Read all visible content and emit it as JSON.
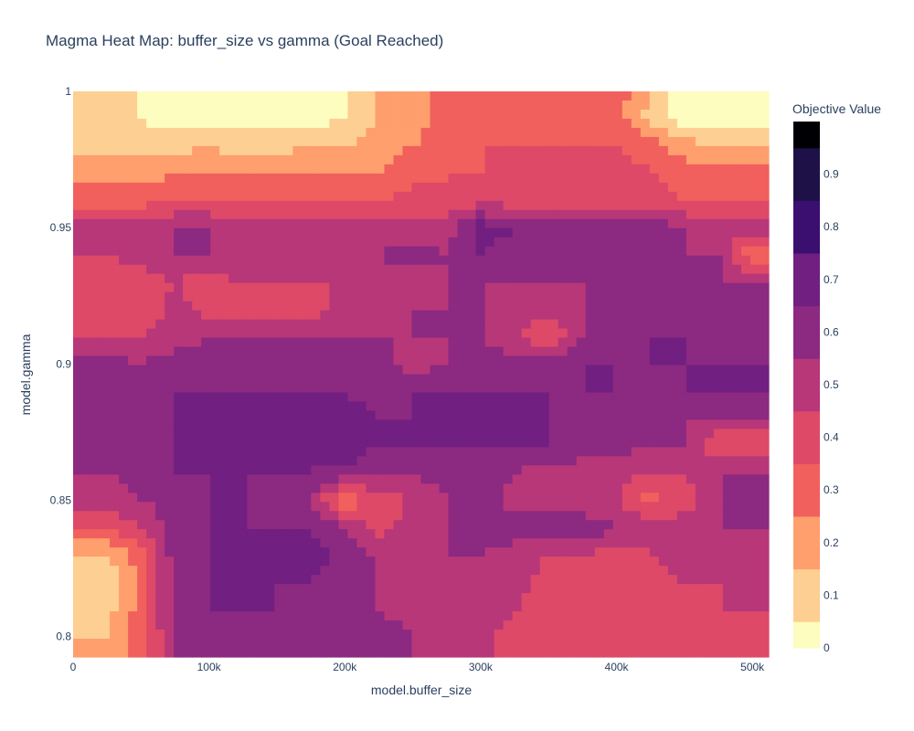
{
  "chart_data": {
    "type": "heatmap",
    "subtype": "contour",
    "title": "Magma Heat Map: buffer_size vs gamma (Goal Reached)",
    "xlabel": "model.buffer_size",
    "ylabel": "model.gamma",
    "xlim": [
      0,
      512000
    ],
    "ylim": [
      0.7925,
      1.0
    ],
    "x_ticks": [
      {
        "value": 0,
        "label": "0"
      },
      {
        "value": 100000,
        "label": "100k"
      },
      {
        "value": 200000,
        "label": "200k"
      },
      {
        "value": 300000,
        "label": "300k"
      },
      {
        "value": 400000,
        "label": "400k"
      },
      {
        "value": 500000,
        "label": "500k"
      }
    ],
    "y_ticks": [
      {
        "value": 0.8,
        "label": "0.8"
      },
      {
        "value": 0.85,
        "label": "0.85"
      },
      {
        "value": 0.9,
        "label": "0.9"
      },
      {
        "value": 0.95,
        "label": "0.95"
      },
      {
        "value": 1.0,
        "label": "1"
      }
    ],
    "colorbar": {
      "title": "Objective Value",
      "range": [
        0,
        1
      ],
      "ticks": [
        "0",
        "0.1",
        "0.2",
        "0.3",
        "0.4",
        "0.5",
        "0.6",
        "0.7",
        "0.8",
        "0.9"
      ],
      "tick_values": [
        0,
        0.1,
        0.2,
        0.3,
        0.4,
        0.5,
        0.6,
        0.7,
        0.8,
        0.9
      ],
      "colorscale": "magma_r",
      "level_colors": [
        "#fcfdbf",
        "#fecf92",
        "#fe9f6d",
        "#f1605d",
        "#de4968",
        "#b73779",
        "#8c2981",
        "#711f81",
        "#3b0f70",
        "#1d1147",
        "#000004"
      ]
    },
    "x": [
      0,
      25000,
      50000,
      75000,
      100000,
      125000,
      150000,
      175000,
      200000,
      225000,
      250000,
      275000,
      300000,
      325000,
      350000,
      375000,
      400000,
      425000,
      450000,
      475000,
      500000
    ],
    "y": [
      0.8,
      0.81,
      0.82,
      0.83,
      0.84,
      0.85,
      0.86,
      0.87,
      0.88,
      0.89,
      0.9,
      0.91,
      0.92,
      0.93,
      0.94,
      0.95,
      0.96,
      0.97,
      0.98,
      0.99,
      1.0
    ],
    "z": [
      [
        0.2,
        0.2,
        0.35,
        0.6,
        0.6,
        0.65,
        0.65,
        0.6,
        0.6,
        0.65,
        0.6,
        0.55,
        0.55,
        0.45,
        0.45,
        0.45,
        0.45,
        0.45,
        0.45,
        0.45,
        0.45
      ],
      [
        0.15,
        0.15,
        0.35,
        0.65,
        0.7,
        0.7,
        0.7,
        0.65,
        0.6,
        0.6,
        0.55,
        0.55,
        0.55,
        0.5,
        0.45,
        0.45,
        0.45,
        0.45,
        0.45,
        0.5,
        0.5
      ],
      [
        0.1,
        0.1,
        0.35,
        0.65,
        0.7,
        0.7,
        0.7,
        0.7,
        0.65,
        0.6,
        0.55,
        0.55,
        0.6,
        0.55,
        0.45,
        0.45,
        0.4,
        0.45,
        0.5,
        0.5,
        0.5
      ],
      [
        0.2,
        0.2,
        0.35,
        0.65,
        0.7,
        0.7,
        0.7,
        0.75,
        0.65,
        0.6,
        0.6,
        0.6,
        0.6,
        0.55,
        0.5,
        0.5,
        0.45,
        0.5,
        0.55,
        0.55,
        0.55
      ],
      [
        0.4,
        0.4,
        0.5,
        0.65,
        0.7,
        0.7,
        0.7,
        0.7,
        0.6,
        0.45,
        0.55,
        0.6,
        0.7,
        0.65,
        0.65,
        0.7,
        0.6,
        0.55,
        0.55,
        0.6,
        0.6
      ],
      [
        0.55,
        0.55,
        0.6,
        0.65,
        0.7,
        0.7,
        0.65,
        0.6,
        0.3,
        0.45,
        0.5,
        0.6,
        0.7,
        0.55,
        0.55,
        0.5,
        0.5,
        0.35,
        0.45,
        0.6,
        0.6
      ],
      [
        0.6,
        0.6,
        0.65,
        0.7,
        0.7,
        0.7,
        0.7,
        0.7,
        0.65,
        0.6,
        0.6,
        0.65,
        0.7,
        0.6,
        0.55,
        0.55,
        0.55,
        0.5,
        0.5,
        0.6,
        0.6
      ],
      [
        0.6,
        0.6,
        0.65,
        0.7,
        0.7,
        0.7,
        0.7,
        0.7,
        0.8,
        0.7,
        0.7,
        0.7,
        0.7,
        0.7,
        0.7,
        0.65,
        0.65,
        0.6,
        0.6,
        0.4,
        0.4
      ],
      [
        0.65,
        0.65,
        0.65,
        0.7,
        0.7,
        0.7,
        0.7,
        0.75,
        0.75,
        0.7,
        0.7,
        0.7,
        0.75,
        0.7,
        0.7,
        0.65,
        0.65,
        0.6,
        0.6,
        0.6,
        0.6
      ],
      [
        0.65,
        0.65,
        0.65,
        0.7,
        0.7,
        0.7,
        0.7,
        0.7,
        0.7,
        0.65,
        0.7,
        0.7,
        0.7,
        0.7,
        0.7,
        0.7,
        0.7,
        0.65,
        0.7,
        0.7,
        0.7
      ],
      [
        0.65,
        0.65,
        0.6,
        0.65,
        0.65,
        0.65,
        0.6,
        0.65,
        0.7,
        0.65,
        0.55,
        0.6,
        0.65,
        0.65,
        0.65,
        0.7,
        0.7,
        0.7,
        0.7,
        0.7,
        0.7
      ],
      [
        0.5,
        0.5,
        0.5,
        0.55,
        0.6,
        0.6,
        0.6,
        0.6,
        0.6,
        0.6,
        0.6,
        0.6,
        0.6,
        0.5,
        0.4,
        0.6,
        0.65,
        0.7,
        0.7,
        0.65,
        0.65
      ],
      [
        0.45,
        0.45,
        0.4,
        0.55,
        0.45,
        0.4,
        0.45,
        0.45,
        0.55,
        0.55,
        0.6,
        0.6,
        0.6,
        0.55,
        0.55,
        0.6,
        0.65,
        0.65,
        0.7,
        0.65,
        0.65
      ],
      [
        0.4,
        0.4,
        0.45,
        0.5,
        0.45,
        0.5,
        0.5,
        0.5,
        0.5,
        0.55,
        0.55,
        0.6,
        0.6,
        0.6,
        0.6,
        0.6,
        0.65,
        0.65,
        0.65,
        0.6,
        0.6
      ],
      [
        0.5,
        0.5,
        0.55,
        0.6,
        0.6,
        0.6,
        0.55,
        0.55,
        0.55,
        0.6,
        0.65,
        0.6,
        0.7,
        0.65,
        0.65,
        0.6,
        0.6,
        0.65,
        0.6,
        0.6,
        0.3
      ],
      [
        0.6,
        0.6,
        0.6,
        0.6,
        0.6,
        0.55,
        0.55,
        0.55,
        0.55,
        0.55,
        0.55,
        0.55,
        0.75,
        0.7,
        0.7,
        0.65,
        0.65,
        0.65,
        0.6,
        0.55,
        0.55
      ],
      [
        0.35,
        0.35,
        0.35,
        0.4,
        0.4,
        0.4,
        0.4,
        0.4,
        0.4,
        0.4,
        0.45,
        0.4,
        0.45,
        0.45,
        0.45,
        0.45,
        0.45,
        0.45,
        0.4,
        0.4,
        0.4
      ],
      [
        0.25,
        0.25,
        0.25,
        0.3,
        0.3,
        0.3,
        0.3,
        0.3,
        0.3,
        0.3,
        0.35,
        0.4,
        0.4,
        0.45,
        0.45,
        0.45,
        0.45,
        0.4,
        0.35,
        0.35,
        0.35
      ],
      [
        0.15,
        0.15,
        0.15,
        0.15,
        0.2,
        0.15,
        0.15,
        0.2,
        0.2,
        0.25,
        0.3,
        0.35,
        0.4,
        0.4,
        0.4,
        0.4,
        0.4,
        0.35,
        0.25,
        0.2,
        0.2
      ],
      [
        0.1,
        0.1,
        0.1,
        0.05,
        0.05,
        0.05,
        0.05,
        0.05,
        0.1,
        0.2,
        0.25,
        0.35,
        0.35,
        0.35,
        0.35,
        0.35,
        0.35,
        0.15,
        0.05,
        0.05,
        0.05
      ],
      [
        0.1,
        0.1,
        0.1,
        0.05,
        0.05,
        0.05,
        0.05,
        0.05,
        0.1,
        0.2,
        0.25,
        0.35,
        0.35,
        0.35,
        0.35,
        0.35,
        0.35,
        0.2,
        0.05,
        0.05,
        0.05
      ]
    ]
  }
}
